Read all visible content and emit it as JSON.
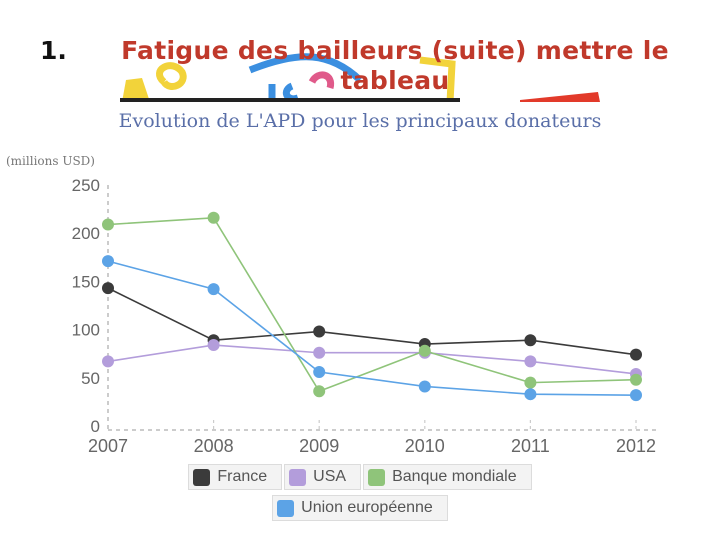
{
  "slide": {
    "number": "1.",
    "title": "Fatigue des bailleurs (suite) mettre le tableau"
  },
  "chart_data": {
    "type": "line",
    "title": "Evolution de L'APD pour les principaux donateurs",
    "ylabel": "(millions USD)",
    "xlabel": "",
    "categories": [
      "2007",
      "2008",
      "2009",
      "2010",
      "2011",
      "2012"
    ],
    "y_ticks": [
      "0",
      "50",
      "100",
      "150",
      "200",
      "250"
    ],
    "ylim": [
      0,
      250
    ],
    "grid": false,
    "legend_position": "bottom",
    "series": [
      {
        "name": "France",
        "color": "#3b3b3b",
        "values": [
          143,
          89,
          98,
          85,
          89,
          74
        ]
      },
      {
        "name": "USA",
        "color": "#b39ddb",
        "values": [
          67,
          84,
          76,
          76,
          67,
          54
        ]
      },
      {
        "name": "Banque mondiale",
        "color": "#8fc47a",
        "values": [
          209,
          216,
          36,
          78,
          45,
          48
        ]
      },
      {
        "name": "Union européenne",
        "color": "#5ca3e6",
        "values": [
          171,
          142,
          56,
          41,
          33,
          32
        ]
      }
    ]
  }
}
